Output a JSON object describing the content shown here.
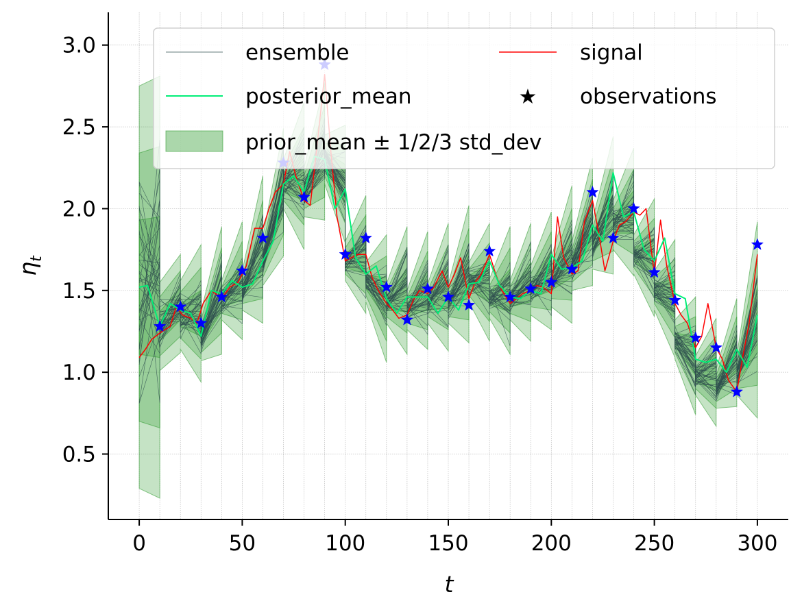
{
  "chart_data": {
    "type": "line",
    "title": "",
    "xlabel": "t",
    "ylabel": "η",
    "ylabel_subscript": "t",
    "xlim": [
      -15,
      315
    ],
    "ylim": [
      0.1,
      3.2
    ],
    "xticks": [
      0,
      50,
      100,
      150,
      200,
      250,
      300
    ],
    "yticks": [
      0.5,
      1.0,
      1.5,
      2.0,
      2.5,
      3.0
    ],
    "xtick_labels": [
      "0",
      "50",
      "100",
      "150",
      "200",
      "250",
      "300"
    ],
    "ytick_labels": [
      "0.5",
      "1.0",
      "1.5",
      "2.0",
      "2.5",
      "3.0"
    ],
    "grid": true,
    "legend_position": "top-right",
    "colors": {
      "ensemble": "#2f4f4f",
      "signal": "#ff0000",
      "posterior_mean": "#00ee77",
      "band": "#2e9b2e",
      "observations": "#0000ff"
    },
    "legend": [
      {
        "key": "ensemble",
        "label": "ensemble"
      },
      {
        "key": "signal",
        "label": "signal"
      },
      {
        "key": "posterior_mean",
        "label": "posterior_mean"
      },
      {
        "key": "observations",
        "label": "observations"
      },
      {
        "key": "band",
        "label": "prior_mean ± 1/2/3 std_dev"
      }
    ],
    "band_t": [
      0,
      10,
      10,
      20,
      20,
      30,
      30,
      40,
      40,
      50,
      50,
      60,
      60,
      70,
      70,
      80,
      80,
      90,
      90,
      100,
      100,
      110,
      110,
      120,
      120,
      130,
      130,
      140,
      140,
      150,
      150,
      160,
      160,
      170,
      170,
      180,
      180,
      190,
      190,
      200,
      200,
      210,
      210,
      220,
      220,
      230,
      230,
      240,
      240,
      250,
      250,
      260,
      260,
      270,
      270,
      280,
      280,
      290,
      290,
      300
    ],
    "band_mean": [
      1.52,
      1.52,
      1.28,
      1.42,
      1.35,
      1.36,
      1.22,
      1.5,
      1.44,
      1.56,
      1.5,
      1.75,
      1.68,
      2.1,
      2.15,
      2.2,
      2.1,
      2.35,
      2.3,
      2.15,
      1.68,
      1.72,
      1.55,
      1.45,
      1.42,
      1.5,
      1.38,
      1.5,
      1.42,
      1.52,
      1.42,
      1.6,
      1.55,
      1.55,
      1.45,
      1.5,
      1.44,
      1.55,
      1.5,
      1.62,
      1.55,
      1.72,
      1.65,
      1.92,
      1.78,
      2.02,
      1.9,
      1.98,
      1.72,
      1.7,
      1.5,
      1.45,
      1.2,
      1.1,
      0.98,
      1.0,
      0.9,
      1.12,
      0.98,
      1.32
    ],
    "band_sd": [
      0.41,
      0.43,
      0.09,
      0.1,
      0.07,
      0.14,
      0.05,
      0.13,
      0.04,
      0.12,
      0.04,
      0.15,
      0.05,
      0.13,
      0.05,
      0.15,
      0.05,
      0.14,
      0.05,
      0.12,
      0.04,
      0.12,
      0.04,
      0.13,
      0.04,
      0.13,
      0.04,
      0.12,
      0.04,
      0.13,
      0.04,
      0.14,
      0.04,
      0.12,
      0.04,
      0.13,
      0.04,
      0.12,
      0.05,
      0.12,
      0.05,
      0.14,
      0.05,
      0.13,
      0.05,
      0.14,
      0.05,
      0.13,
      0.04,
      0.12,
      0.04,
      0.12,
      0.04,
      0.12,
      0.04,
      0.11,
      0.04,
      0.11,
      0.04,
      0.2
    ],
    "signal": {
      "t": [
        0,
        3,
        6,
        10,
        15,
        18,
        21,
        25,
        28,
        31,
        35,
        40,
        44,
        48,
        52,
        56,
        60,
        63,
        66,
        70,
        73,
        76,
        80,
        83,
        86,
        90,
        93,
        96,
        100,
        103,
        106,
        110,
        113,
        116,
        120,
        123,
        126,
        130,
        133,
        136,
        140,
        143,
        147,
        150,
        153,
        156,
        160,
        163,
        166,
        170,
        173,
        176,
        180,
        183,
        186,
        190,
        193,
        196,
        200,
        203,
        206,
        210,
        213,
        216,
        220,
        223,
        226,
        230,
        233,
        236,
        240,
        243,
        246,
        250,
        253,
        256,
        260,
        263,
        266,
        270,
        273,
        276,
        280,
        283,
        286,
        290,
        293,
        296,
        300
      ],
      "values": [
        1.09,
        1.14,
        1.2,
        1.24,
        1.28,
        1.4,
        1.35,
        1.33,
        1.3,
        1.42,
        1.5,
        1.45,
        1.52,
        1.55,
        1.65,
        1.88,
        1.88,
        2.0,
        2.1,
        2.15,
        2.35,
        2.2,
        2.05,
        2.02,
        2.35,
        2.82,
        2.35,
        1.95,
        1.68,
        1.7,
        1.72,
        1.72,
        1.58,
        1.5,
        1.42,
        1.38,
        1.33,
        1.35,
        1.44,
        1.5,
        1.48,
        1.52,
        1.62,
        1.52,
        1.6,
        1.7,
        1.45,
        1.55,
        1.6,
        1.72,
        1.6,
        1.5,
        1.42,
        1.45,
        1.48,
        1.5,
        1.53,
        1.52,
        1.48,
        1.95,
        1.7,
        1.6,
        1.62,
        1.92,
        2.05,
        1.85,
        1.62,
        1.8,
        1.9,
        1.92,
        1.98,
        1.96,
        2.0,
        1.6,
        1.93,
        1.65,
        1.42,
        1.35,
        1.3,
        1.15,
        1.22,
        1.42,
        1.15,
        1.08,
        0.95,
        0.88,
        1.1,
        1.3,
        1.72
      ]
    },
    "posterior_mean": {
      "t": [
        0,
        4,
        10,
        15,
        20,
        25,
        30,
        35,
        40,
        45,
        50,
        55,
        60,
        65,
        70,
        75,
        80,
        85,
        90,
        95,
        100,
        105,
        110,
        115,
        120,
        125,
        130,
        135,
        140,
        145,
        150,
        155,
        160,
        165,
        170,
        175,
        180,
        185,
        190,
        195,
        200,
        205,
        210,
        215,
        220,
        225,
        230,
        235,
        240,
        245,
        250,
        255,
        260,
        265,
        270,
        275,
        280,
        285,
        290,
        295,
        300
      ],
      "values": [
        1.52,
        1.53,
        1.28,
        1.42,
        1.38,
        1.36,
        1.22,
        1.5,
        1.48,
        1.56,
        1.52,
        1.54,
        1.68,
        1.8,
        2.15,
        2.2,
        2.1,
        2.32,
        2.3,
        2.0,
        2.12,
        1.7,
        1.6,
        1.65,
        1.45,
        1.36,
        1.46,
        1.46,
        1.46,
        1.36,
        1.46,
        1.38,
        1.54,
        1.55,
        1.68,
        1.53,
        1.46,
        1.45,
        1.5,
        1.48,
        1.72,
        1.63,
        1.64,
        1.68,
        1.9,
        1.8,
        2.22,
        1.95,
        1.98,
        1.75,
        1.68,
        1.82,
        1.48,
        1.45,
        1.08,
        1.06,
        1.08,
        1.0,
        1.14,
        1.03,
        1.35
      ]
    },
    "observations": {
      "t": [
        10,
        20,
        30,
        40,
        50,
        60,
        70,
        80,
        90,
        100,
        110,
        120,
        130,
        140,
        150,
        160,
        170,
        180,
        190,
        200,
        210,
        220,
        230,
        240,
        250,
        260,
        270,
        280,
        290,
        300
      ],
      "values": [
        1.28,
        1.4,
        1.3,
        1.46,
        1.62,
        1.82,
        2.28,
        2.07,
        2.88,
        1.72,
        1.82,
        1.52,
        1.32,
        1.51,
        1.46,
        1.41,
        1.74,
        1.46,
        1.51,
        1.55,
        1.63,
        2.1,
        1.82,
        2.0,
        1.61,
        1.44,
        1.21,
        1.15,
        0.88,
        1.78
      ]
    },
    "ensemble_members": 40
  }
}
